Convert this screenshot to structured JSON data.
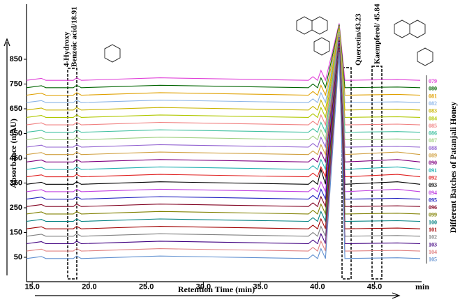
{
  "chart_data": {
    "type": "line",
    "x_label": "Retention Time (min)",
    "y_label": "Absorbance (mAU)",
    "x_unit": "min",
    "side_label": "Different Batches of Patanjali Honey",
    "annotations": [
      "4-Hydroxy",
      "Benzoic acid/18.91",
      "Quercetin/43.23",
      "Kaempferol/ 45.84"
    ],
    "xlim": [
      14.5,
      49
    ],
    "ylim": [
      -50,
      1065
    ],
    "xticks": [
      {
        "value": 15,
        "label": "15.0"
      },
      {
        "value": 20,
        "label": "20.0"
      },
      {
        "value": 25,
        "label": "25.0"
      },
      {
        "value": 30,
        "label": "30.0"
      },
      {
        "value": 35,
        "label": "35.0"
      },
      {
        "value": 40,
        "label": "40.0"
      },
      {
        "value": 45,
        "label": "45.0"
      }
    ],
    "yticks": [
      50,
      150,
      250,
      350,
      450,
      550,
      650,
      750,
      850
    ],
    "x": [
      14.5,
      15.8,
      16.2,
      18.6,
      18.9,
      19.3,
      26.2,
      39.2,
      39.6,
      40.0,
      40.3,
      40.7,
      41.9,
      42.4,
      47.0,
      49.0
    ],
    "series": [
      {
        "name": "079",
        "color": "#e040d8",
        "values": [
          765,
          773,
          765,
          765,
          775,
          765,
          775,
          765,
          780,
          765,
          805,
          765,
          995,
          765,
          768,
          765
        ]
      },
      {
        "name": "080",
        "color": "#006400",
        "values": [
          735,
          743,
          735,
          735,
          745,
          735,
          745,
          735,
          750,
          735,
          775,
          735,
          990,
          735,
          738,
          735
        ]
      },
      {
        "name": "081",
        "color": "#e0a000",
        "values": [
          705,
          713,
          705,
          705,
          715,
          705,
          715,
          705,
          720,
          705,
          745,
          705,
          985,
          705,
          708,
          705
        ]
      },
      {
        "name": "082",
        "color": "#8ab4e8",
        "values": [
          675,
          683,
          675,
          675,
          685,
          675,
          685,
          675,
          690,
          675,
          715,
          675,
          980,
          675,
          678,
          675
        ]
      },
      {
        "name": "083",
        "color": "#c8b400",
        "values": [
          645,
          653,
          645,
          645,
          655,
          645,
          655,
          645,
          660,
          645,
          685,
          645,
          975,
          645,
          648,
          645
        ]
      },
      {
        "name": "084",
        "color": "#b0c800",
        "values": [
          615,
          623,
          615,
          615,
          625,
          615,
          625,
          615,
          630,
          615,
          655,
          615,
          970,
          615,
          618,
          615
        ]
      },
      {
        "name": "085",
        "color": "#f08080",
        "values": [
          585,
          593,
          585,
          585,
          595,
          585,
          595,
          585,
          600,
          585,
          625,
          585,
          965,
          585,
          588,
          585
        ]
      },
      {
        "name": "086",
        "color": "#40c0a0",
        "values": [
          555,
          563,
          555,
          555,
          565,
          555,
          565,
          555,
          570,
          555,
          595,
          555,
          960,
          555,
          558,
          555
        ]
      },
      {
        "name": "087",
        "color": "#a0d080",
        "values": [
          525,
          533,
          525,
          525,
          535,
          525,
          535,
          525,
          540,
          525,
          565,
          525,
          955,
          525,
          528,
          525
        ]
      },
      {
        "name": "088",
        "color": "#9060d0",
        "values": [
          495,
          503,
          495,
          495,
          505,
          495,
          505,
          495,
          510,
          495,
          535,
          495,
          950,
          495,
          498,
          495
        ]
      },
      {
        "name": "089",
        "color": "#d0a040",
        "values": [
          465,
          473,
          465,
          465,
          475,
          465,
          475,
          465,
          480,
          465,
          505,
          465,
          945,
          465,
          475,
          465
        ]
      },
      {
        "name": "090",
        "color": "#800080",
        "values": [
          435,
          443,
          435,
          435,
          445,
          435,
          445,
          435,
          450,
          435,
          475,
          435,
          940,
          435,
          445,
          435
        ]
      },
      {
        "name": "091",
        "color": "#20b0b0",
        "values": [
          405,
          413,
          405,
          405,
          415,
          405,
          415,
          405,
          420,
          405,
          445,
          405,
          935,
          405,
          415,
          405
        ]
      },
      {
        "name": "092",
        "color": "#e02020",
        "values": [
          375,
          383,
          375,
          375,
          385,
          375,
          385,
          375,
          390,
          375,
          415,
          375,
          930,
          375,
          385,
          375
        ]
      },
      {
        "name": "093",
        "color": "#000000",
        "values": [
          345,
          353,
          345,
          345,
          355,
          345,
          355,
          345,
          360,
          345,
          405,
          345,
          925,
          345,
          355,
          345
        ]
      },
      {
        "name": "094",
        "color": "#c040e0",
        "values": [
          315,
          323,
          315,
          315,
          325,
          315,
          325,
          315,
          330,
          315,
          355,
          315,
          920,
          315,
          325,
          315
        ]
      },
      {
        "name": "095",
        "color": "#2020c0",
        "values": [
          285,
          293,
          285,
          285,
          295,
          285,
          295,
          285,
          300,
          285,
          325,
          285,
          915,
          285,
          288,
          285
        ]
      },
      {
        "name": "096",
        "color": "#800020",
        "values": [
          255,
          263,
          255,
          255,
          265,
          255,
          265,
          255,
          270,
          255,
          295,
          255,
          910,
          255,
          258,
          255
        ]
      },
      {
        "name": "099",
        "color": "#808000",
        "values": [
          225,
          233,
          225,
          225,
          235,
          225,
          235,
          225,
          240,
          225,
          265,
          225,
          905,
          225,
          228,
          225
        ]
      },
      {
        "name": "100",
        "color": "#008080",
        "values": [
          195,
          203,
          195,
          195,
          205,
          195,
          205,
          195,
          210,
          195,
          235,
          195,
          900,
          195,
          198,
          195
        ]
      },
      {
        "name": "101",
        "color": "#a00000",
        "values": [
          165,
          173,
          165,
          165,
          175,
          165,
          175,
          165,
          180,
          165,
          205,
          165,
          895,
          165,
          168,
          165
        ]
      },
      {
        "name": "102",
        "color": "#808080",
        "values": [
          135,
          143,
          135,
          135,
          145,
          135,
          145,
          135,
          150,
          135,
          175,
          135,
          890,
          135,
          138,
          135
        ]
      },
      {
        "name": "103",
        "color": "#400080",
        "values": [
          105,
          113,
          105,
          105,
          115,
          105,
          115,
          105,
          120,
          105,
          145,
          105,
          885,
          105,
          108,
          105
        ]
      },
      {
        "name": "104",
        "color": "#e08080",
        "values": [
          75,
          83,
          75,
          75,
          85,
          75,
          85,
          75,
          90,
          75,
          115,
          75,
          880,
          75,
          78,
          75
        ]
      },
      {
        "name": "105",
        "color": "#6090d0",
        "values": [
          45,
          53,
          45,
          45,
          55,
          45,
          55,
          45,
          60,
          45,
          85,
          45,
          875,
          45,
          48,
          45
        ]
      }
    ]
  }
}
